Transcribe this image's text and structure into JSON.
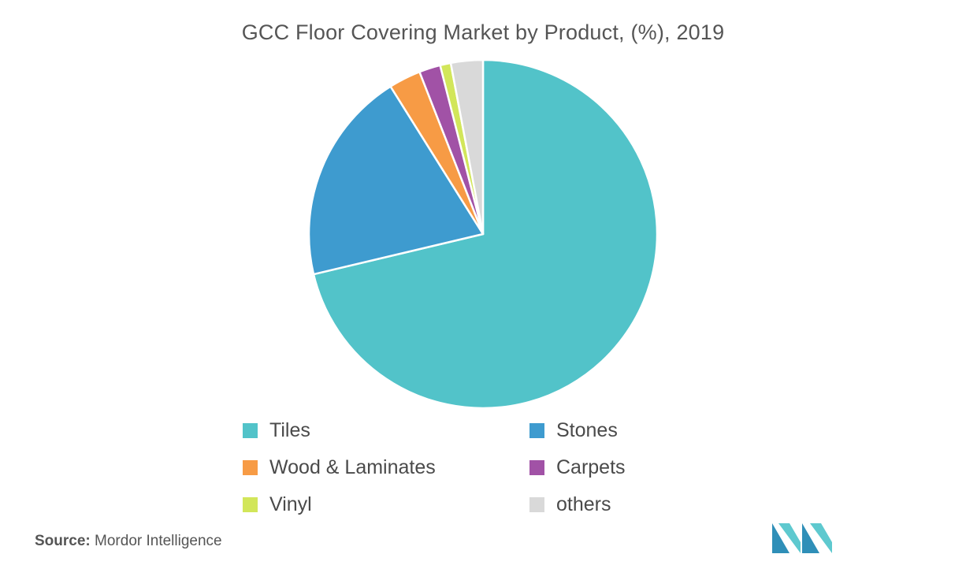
{
  "chart_data": {
    "type": "pie",
    "title": "GCC Floor Covering Market  by Product, (%), 2019",
    "categories": [
      "Tiles",
      "Stones",
      "Wood & Laminates",
      "Carpets",
      "Vinyl",
      "others"
    ],
    "values": [
      72,
      20,
      3,
      2,
      1,
      3
    ],
    "unit": "%",
    "colors": [
      "#52c3c9",
      "#3e9bcf",
      "#f79b45",
      "#a152a6",
      "#d2e65a",
      "#d9d9d9"
    ],
    "start_angle_deg": 0,
    "direction": "clockwise",
    "legend_position": "bottom",
    "legend": [
      {
        "label": "Tiles",
        "color": "#52c3c9"
      },
      {
        "label": "Stones",
        "color": "#3e9bcf"
      },
      {
        "label": "Wood & Laminates",
        "color": "#f79b45"
      },
      {
        "label": "Carpets",
        "color": "#a152a6"
      },
      {
        "label": "Vinyl",
        "color": "#d2e65a"
      },
      {
        "label": "others",
        "color": "#d9d9d9"
      }
    ]
  },
  "source": {
    "key": "Source:",
    "value": "Mordor Intelligence"
  },
  "logo": {
    "icon": "mordor-intelligence-logo-icon",
    "colors": [
      "#2f8fb8",
      "#5ec9cf"
    ]
  }
}
